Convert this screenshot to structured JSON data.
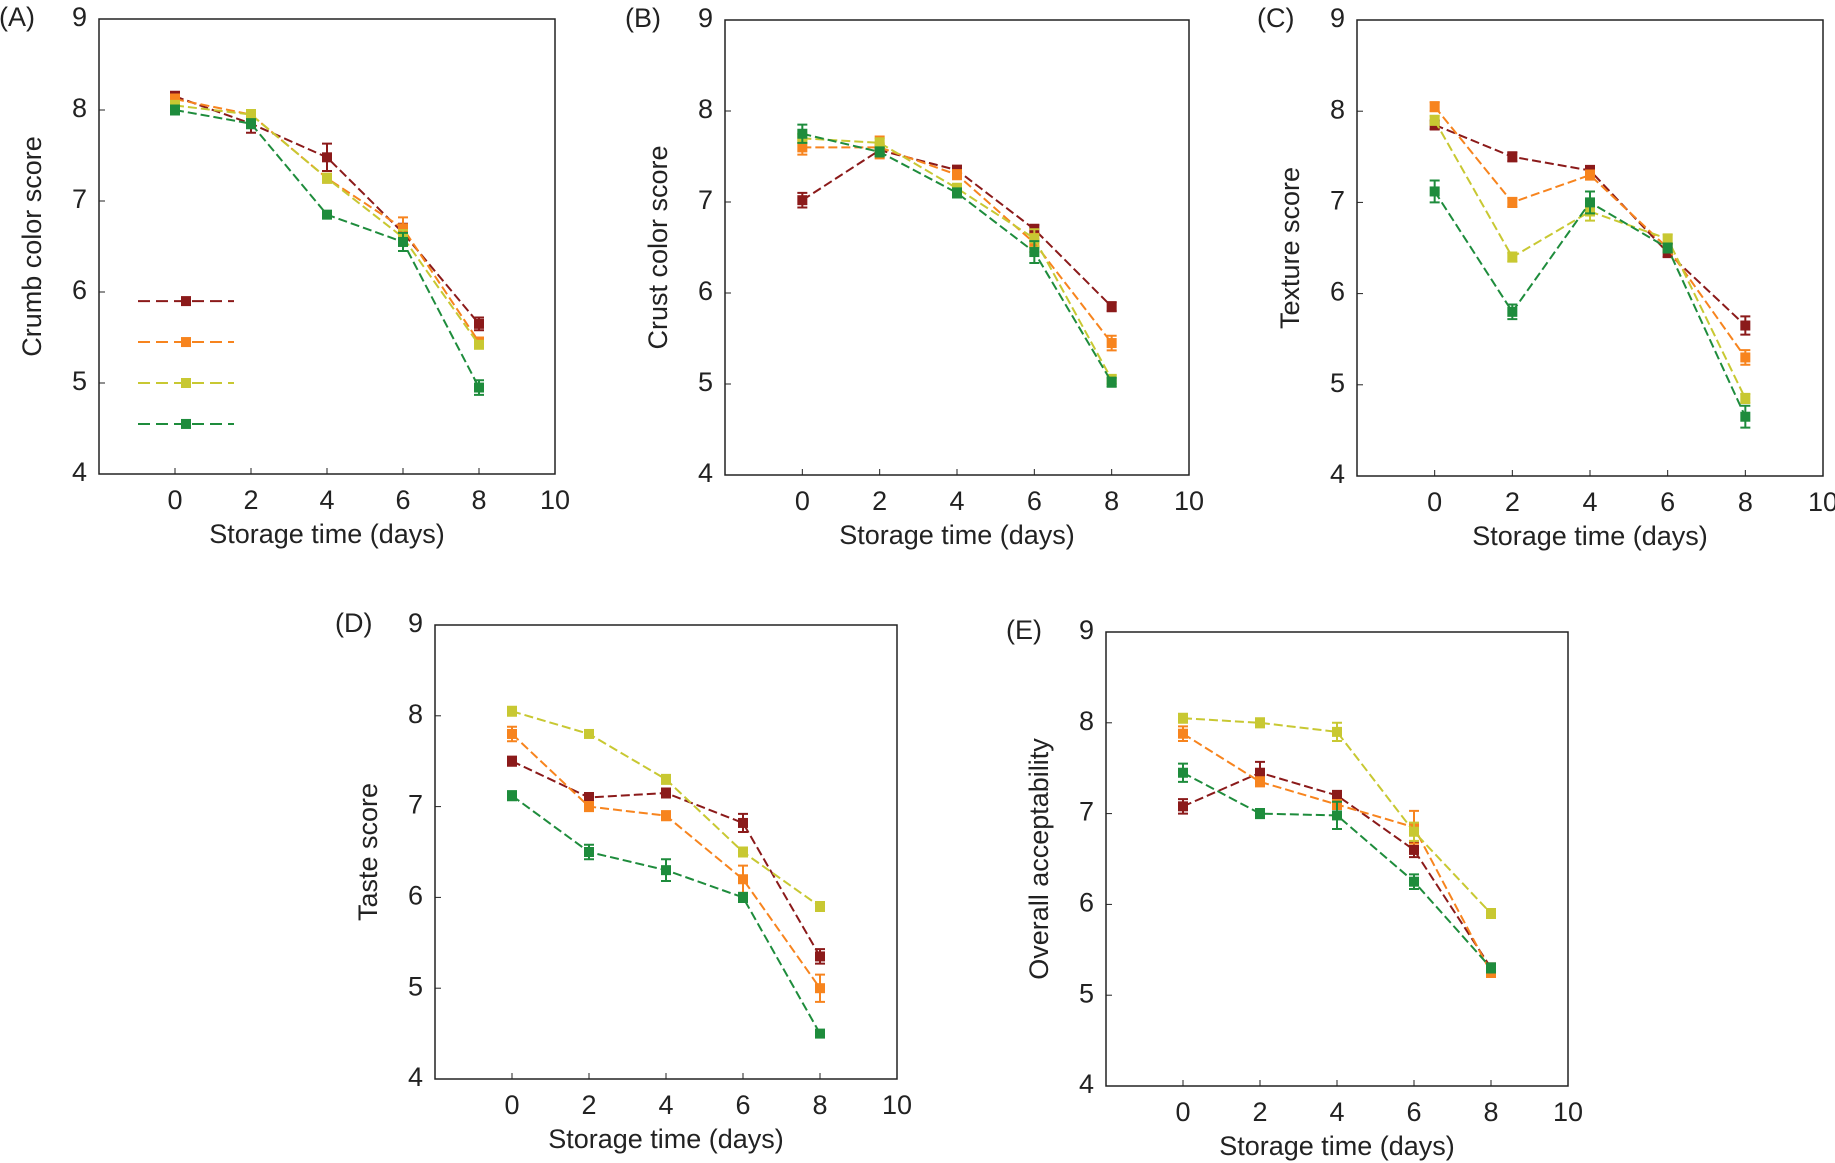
{
  "chart_data": [
    {
      "type": "line",
      "panel_label": "(A)",
      "ylabel": "Crumb color score",
      "xlabel": "Storage time (days)",
      "x": [
        0,
        2,
        4,
        6,
        8
      ],
      "xlim": [
        -2,
        10
      ],
      "xticks": [
        0,
        2,
        4,
        6,
        8,
        10
      ],
      "ylim": [
        4,
        9
      ],
      "yticks": [
        4,
        5,
        6,
        7,
        8,
        9
      ],
      "legend": "center left",
      "series": [
        {
          "color": "#8b1a1a",
          "values": [
            8.15,
            7.85,
            7.48,
            6.65,
            5.65
          ],
          "errors": [
            0.05,
            0.1,
            0.15,
            0.1,
            0.07
          ]
        },
        {
          "color": "#f7841e",
          "values": [
            8.12,
            7.95,
            7.25,
            6.7,
            5.45
          ],
          "errors": [
            0.05,
            0.05,
            0.05,
            0.12,
            0.05
          ]
        },
        {
          "color": "#c8c832",
          "values": [
            8.05,
            7.95,
            7.25,
            6.6,
            5.42
          ],
          "errors": [
            0.05,
            0.05,
            0.05,
            0.08,
            0.04
          ]
        },
        {
          "color": "#1e8c3c",
          "values": [
            8.0,
            7.85,
            6.85,
            6.55,
            4.95
          ],
          "errors": [
            0.05,
            0.05,
            0.03,
            0.1,
            0.08
          ]
        }
      ]
    },
    {
      "type": "line",
      "panel_label": "(B)",
      "ylabel": "Crust color score",
      "xlabel": "Storage time (days)",
      "x": [
        0,
        2,
        4,
        6,
        8
      ],
      "xlim": [
        -2,
        10
      ],
      "xticks": [
        0,
        2,
        4,
        6,
        8,
        10
      ],
      "ylim": [
        4,
        9
      ],
      "yticks": [
        4,
        5,
        6,
        7,
        8,
        9
      ],
      "series": [
        {
          "color": "#8b1a1a",
          "values": [
            7.02,
            7.57,
            7.35,
            6.7,
            5.85
          ],
          "errors": [
            0.08,
            0.05,
            0.05,
            0.05,
            0.05
          ]
        },
        {
          "color": "#f7841e",
          "values": [
            7.6,
            7.6,
            7.3,
            6.55,
            5.45
          ],
          "errors": [
            0.08,
            0.12,
            0.05,
            0.1,
            0.08
          ]
        },
        {
          "color": "#c8c832",
          "values": [
            7.7,
            7.65,
            7.15,
            6.6,
            5.05
          ],
          "errors": [
            0.05,
            0.05,
            0.05,
            0.1,
            0.05
          ]
        },
        {
          "color": "#1e8c3c",
          "values": [
            7.75,
            7.55,
            7.1,
            6.45,
            5.02
          ],
          "errors": [
            0.1,
            0.05,
            0.05,
            0.12,
            0.05
          ]
        }
      ]
    },
    {
      "type": "line",
      "panel_label": "(C)",
      "ylabel": "Texture score",
      "xlabel": "Storage time (days)",
      "x": [
        0,
        2,
        4,
        6,
        8
      ],
      "xlim": [
        -2,
        10
      ],
      "xticks": [
        0,
        2,
        4,
        6,
        8,
        10
      ],
      "ylim": [
        4,
        9
      ],
      "yticks": [
        4,
        5,
        6,
        7,
        8,
        9
      ],
      "series": [
        {
          "color": "#8b1a1a",
          "values": [
            7.85,
            7.5,
            7.35,
            6.45,
            5.65
          ],
          "errors": [
            0.05,
            0.05,
            0.05,
            0.05,
            0.1
          ]
        },
        {
          "color": "#f7841e",
          "values": [
            8.05,
            7.0,
            7.3,
            6.5,
            5.3
          ],
          "errors": [
            0.05,
            0.05,
            0.05,
            0.05,
            0.08
          ]
        },
        {
          "color": "#c8c832",
          "values": [
            7.9,
            6.4,
            6.9,
            6.6,
            4.85
          ],
          "errors": [
            0.05,
            0.05,
            0.1,
            0.05,
            0.05
          ]
        },
        {
          "color": "#1e8c3c",
          "values": [
            7.12,
            5.8,
            7.0,
            6.5,
            4.65
          ],
          "errors": [
            0.12,
            0.08,
            0.12,
            0.05,
            0.12
          ]
        }
      ]
    },
    {
      "type": "line",
      "panel_label": "(D)",
      "ylabel": "Taste score",
      "xlabel": "Storage time (days)",
      "x": [
        0,
        2,
        4,
        6,
        8
      ],
      "xlim": [
        -2,
        10
      ],
      "xticks": [
        0,
        2,
        4,
        6,
        8,
        10
      ],
      "ylim": [
        4,
        9
      ],
      "yticks": [
        4,
        5,
        6,
        7,
        8,
        9
      ],
      "series": [
        {
          "color": "#8b1a1a",
          "values": [
            7.5,
            7.1,
            7.15,
            6.82,
            5.35
          ],
          "errors": [
            0.05,
            0.05,
            0.05,
            0.1,
            0.08
          ]
        },
        {
          "color": "#f7841e",
          "values": [
            7.8,
            7.0,
            6.9,
            6.2,
            5.0
          ],
          "errors": [
            0.08,
            0.05,
            0.05,
            0.15,
            0.15
          ]
        },
        {
          "color": "#c8c832",
          "values": [
            8.05,
            7.8,
            7.3,
            6.5,
            5.9
          ],
          "errors": [
            0.05,
            0.03,
            0.05,
            0.05,
            0.05
          ]
        },
        {
          "color": "#1e8c3c",
          "values": [
            7.12,
            6.5,
            6.3,
            6.0,
            4.5
          ],
          "errors": [
            0.05,
            0.08,
            0.12,
            0.05,
            0.03
          ]
        }
      ]
    },
    {
      "type": "line",
      "panel_label": "(E)",
      "ylabel": "Overall acceptability",
      "xlabel": "Storage time (days)",
      "x": [
        0,
        2,
        4,
        6,
        8
      ],
      "xlim": [
        -2,
        10
      ],
      "xticks": [
        0,
        2,
        4,
        6,
        8,
        10
      ],
      "ylim": [
        4,
        9
      ],
      "yticks": [
        4,
        5,
        6,
        7,
        8,
        9
      ],
      "series": [
        {
          "color": "#8b1a1a",
          "values": [
            7.08,
            7.45,
            7.2,
            6.6,
            5.3
          ],
          "errors": [
            0.08,
            0.12,
            0.05,
            0.08,
            0.05
          ]
        },
        {
          "color": "#f7841e",
          "values": [
            7.88,
            7.35,
            7.1,
            6.85,
            5.25
          ],
          "errors": [
            0.08,
            0.05,
            0.05,
            0.18,
            0.05
          ]
        },
        {
          "color": "#c8c832",
          "values": [
            8.05,
            8.0,
            7.9,
            6.8,
            5.9
          ],
          "errors": [
            0.05,
            0.05,
            0.1,
            0.1,
            0.05
          ]
        },
        {
          "color": "#1e8c3c",
          "values": [
            7.45,
            7.0,
            6.98,
            6.25,
            5.3
          ],
          "errors": [
            0.1,
            0.05,
            0.15,
            0.08,
            0.05
          ]
        }
      ]
    }
  ]
}
